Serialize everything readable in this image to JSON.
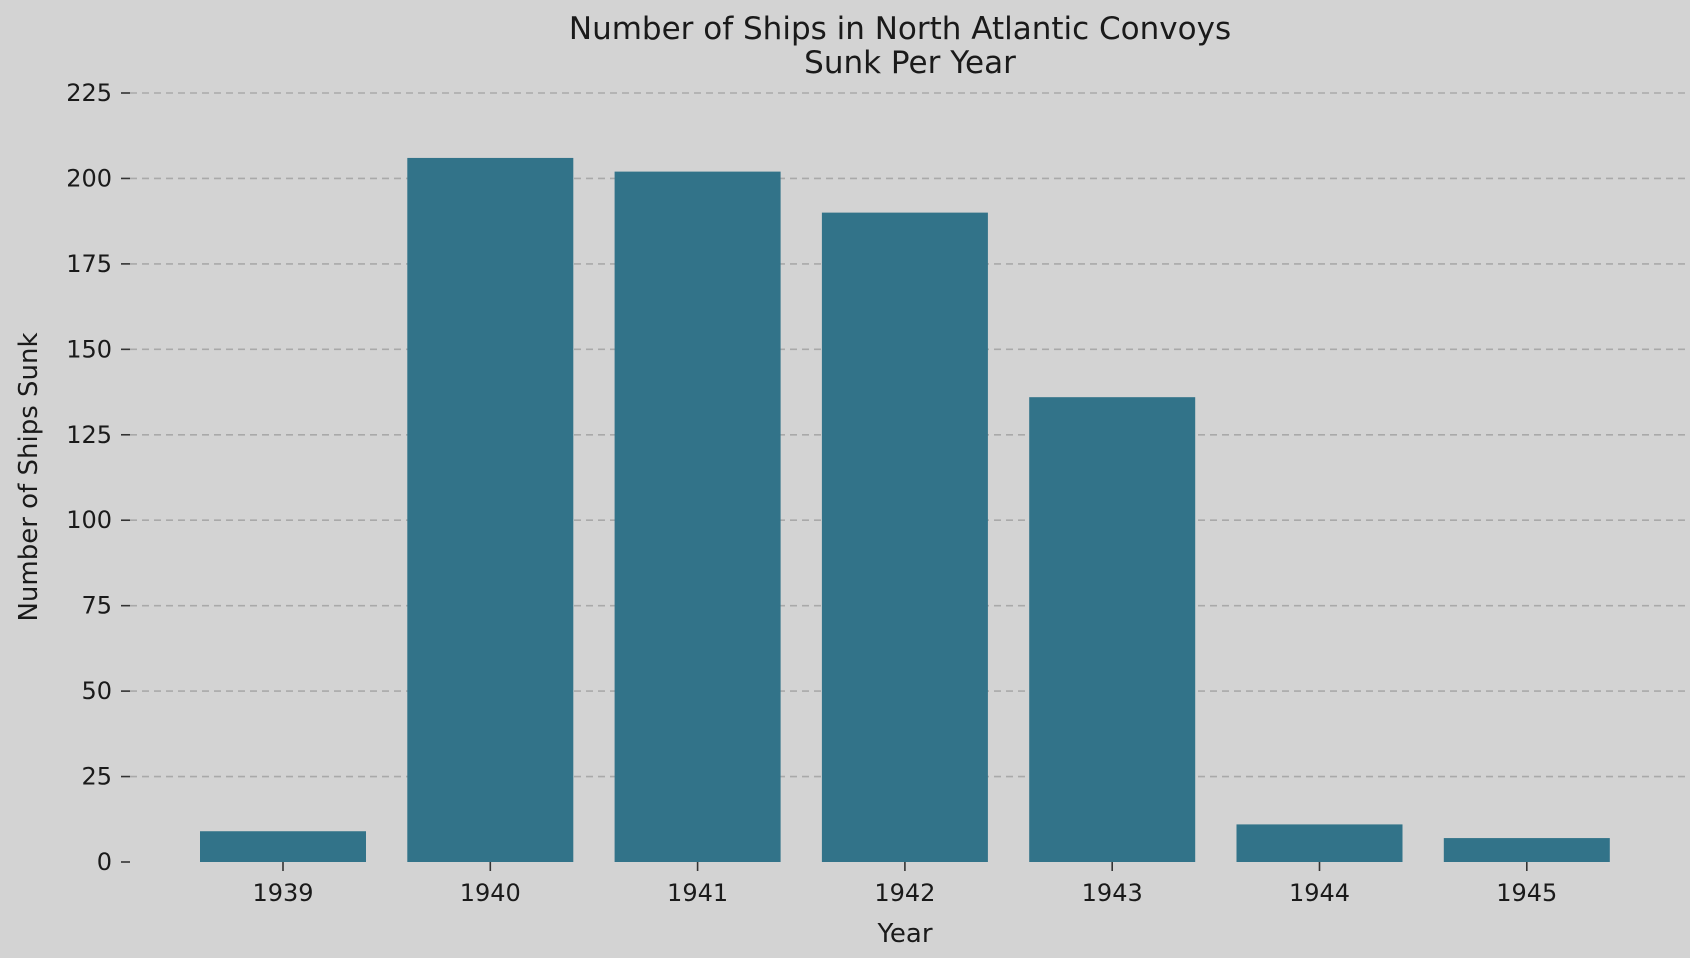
{
  "chart_data": {
    "type": "bar",
    "title": [
      "Number of Ships in North Atlantic Convoys",
      "Sunk Per Year"
    ],
    "xlabel": "Year",
    "ylabel": "Number of Ships Sunk",
    "categories": [
      "1939",
      "1940",
      "1941",
      "1942",
      "1943",
      "1944",
      "1945"
    ],
    "values": [
      9,
      206,
      202,
      190,
      136,
      11,
      7
    ],
    "ylim": [
      0,
      225
    ],
    "yticks": [
      0,
      25,
      50,
      75,
      100,
      125,
      150,
      175,
      200,
      225
    ],
    "grid": "y-dashed",
    "legend": "none",
    "bar_color": "#327389",
    "background_color": "#d3d3d3"
  }
}
